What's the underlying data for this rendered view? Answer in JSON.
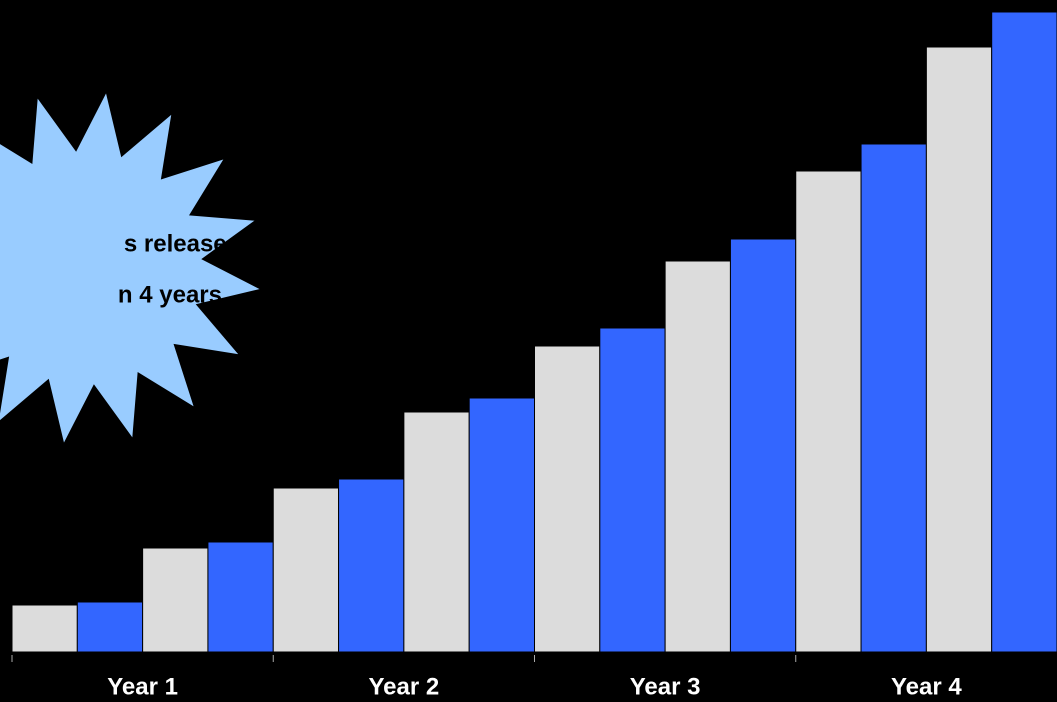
{
  "chart_data": {
    "type": "bar",
    "annotation": [
      "s releases",
      "n 4 years"
    ],
    "categories": [
      "Year 1",
      "Year 2",
      "Year 3",
      "Year 4"
    ],
    "series": [
      {
        "color": "#dcdcdc",
        "values": [
          47,
          164,
          306,
          481
        ]
      },
      {
        "color": "#3366ff",
        "values": [
          50,
          173,
          324,
          508
        ]
      },
      {
        "color": "#dcdcdc",
        "values": [
          104,
          240,
          391,
          605
        ]
      },
      {
        "color": "#3366ff",
        "values": [
          110,
          254,
          413,
          640
        ]
      }
    ],
    "ylim": [
      0,
      640
    ]
  }
}
